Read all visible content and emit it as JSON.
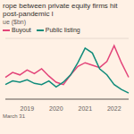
{
  "chart_data": {
    "type": "line",
    "title": "rope between private equity firms hit post-pandemic l",
    "subtitle": "ue ($bn)",
    "annotations": [
      "March 31"
    ],
    "categories": [
      null,
      null,
      null,
      "2019",
      null,
      null,
      null,
      "2020",
      null,
      null,
      null,
      "2021",
      null,
      null,
      null,
      "2022",
      null,
      null
    ],
    "series": [
      {
        "name": "Buyout",
        "color": "#e3457a",
        "values": [
          18,
          22,
          20,
          24,
          21,
          25,
          19,
          14,
          12,
          20,
          27,
          30,
          28,
          26,
          31,
          44,
          30,
          18
        ]
      },
      {
        "name": "Public listing",
        "color": "#118c7b",
        "values": [
          12,
          15,
          14,
          16,
          13,
          12,
          15,
          10,
          14,
          20,
          30,
          42,
          38,
          25,
          20,
          12,
          8,
          5
        ]
      }
    ],
    "ylim": [
      0,
      50
    ],
    "yticks": [
      0,
      10,
      20,
      30,
      40,
      50
    ],
    "grid": true,
    "tick_labels": "x"
  }
}
